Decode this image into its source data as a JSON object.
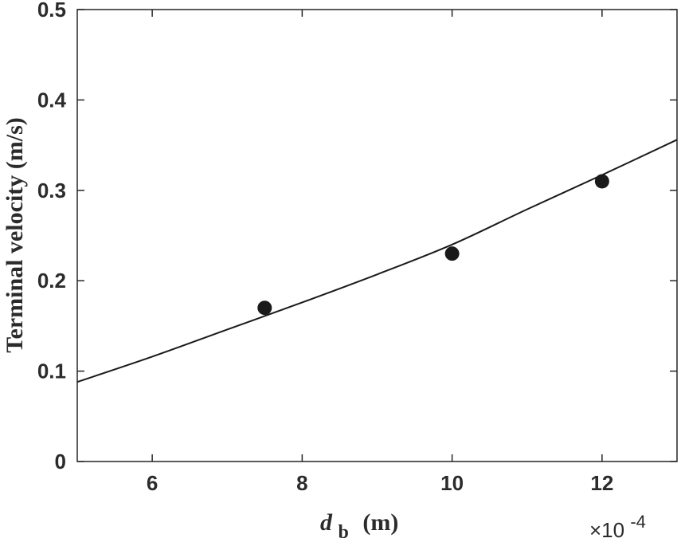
{
  "chart_data": {
    "type": "scatter",
    "title": "",
    "xlabel_main": "d",
    "xlabel_sub": "b",
    "xlabel_unit": "(m)",
    "ylabel": "Terminal velocity (m/s)",
    "x_exponent_label": "×10",
    "x_exponent_power": "-4",
    "x_scale_multiplier": 0.0001,
    "xlim": [
      5,
      13
    ],
    "ylim": [
      0,
      0.5
    ],
    "x_ticks": [
      6,
      8,
      10,
      12
    ],
    "x_tick_labels": [
      "6",
      "8",
      "10",
      "12"
    ],
    "y_ticks": [
      0,
      0.1,
      0.2,
      0.3,
      0.4,
      0.5
    ],
    "y_tick_labels": [
      "0",
      "0.1",
      "0.2",
      "0.3",
      "0.4",
      "0.5"
    ],
    "grid": false,
    "legend": "none",
    "series": [
      {
        "kind": "points",
        "x": [
          7.5,
          10,
          12
        ],
        "y": [
          0.17,
          0.23,
          0.31
        ],
        "color": "#1a1a1a"
      },
      {
        "kind": "curve",
        "x": [
          5,
          6,
          7,
          8,
          9,
          10,
          11,
          12,
          13
        ],
        "y": [
          0.088,
          0.116,
          0.146,
          0.176,
          0.207,
          0.24,
          0.279,
          0.317,
          0.356
        ],
        "color": "#1a1a1a"
      }
    ]
  }
}
